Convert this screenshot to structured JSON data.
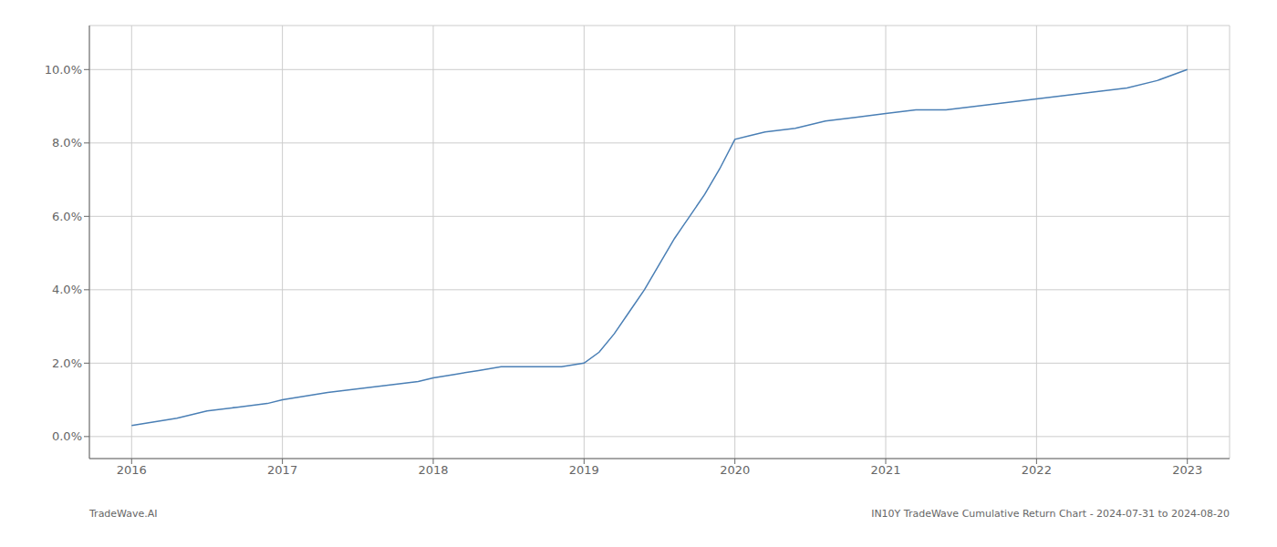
{
  "chart_data": {
    "type": "line",
    "x": [
      2016.0,
      2016.15,
      2016.3,
      2016.5,
      2016.7,
      2016.9,
      2017.0,
      2017.15,
      2017.3,
      2017.5,
      2017.7,
      2017.9,
      2018.0,
      2018.15,
      2018.3,
      2018.45,
      2018.55,
      2018.65,
      2018.75,
      2018.85,
      2019.0,
      2019.1,
      2019.2,
      2019.3,
      2019.4,
      2019.5,
      2019.6,
      2019.65,
      2019.7,
      2019.8,
      2019.9,
      2020.0,
      2020.1,
      2020.2,
      2020.4,
      2020.6,
      2020.8,
      2021.0,
      2021.2,
      2021.4,
      2021.6,
      2021.8,
      2022.0,
      2022.2,
      2022.4,
      2022.6,
      2022.8,
      2023.0
    ],
    "values": [
      0.003,
      0.004,
      0.005,
      0.007,
      0.008,
      0.009,
      0.01,
      0.011,
      0.012,
      0.013,
      0.014,
      0.015,
      0.016,
      0.017,
      0.018,
      0.019,
      0.019,
      0.019,
      0.019,
      0.019,
      0.02,
      0.023,
      0.028,
      0.034,
      0.04,
      0.047,
      0.054,
      0.057,
      0.06,
      0.066,
      0.073,
      0.081,
      0.082,
      0.083,
      0.084,
      0.086,
      0.087,
      0.088,
      0.089,
      0.089,
      0.09,
      0.091,
      0.092,
      0.093,
      0.094,
      0.095,
      0.097,
      0.1
    ],
    "color": "#4a7fb5",
    "xlim": [
      2015.72,
      2023.28
    ],
    "xticks": [
      2016,
      2017,
      2018,
      2019,
      2020,
      2021,
      2022,
      2023
    ],
    "ylim": [
      -0.006,
      0.112
    ],
    "yticks": [
      {
        "value": 0.0,
        "label": "0.0%"
      },
      {
        "value": 0.02,
        "label": "2.0%"
      },
      {
        "value": 0.04,
        "label": "4.0%"
      },
      {
        "value": 0.06,
        "label": "6.0%"
      },
      {
        "value": 0.08,
        "label": "8.0%"
      },
      {
        "value": 0.1,
        "label": "10.0%"
      }
    ],
    "grid": true,
    "annotations": [
      "TradeWave.AI",
      "IN10Y TradeWave Cumulative Return Chart - 2024-07-31 to 2024-08-20"
    ]
  }
}
